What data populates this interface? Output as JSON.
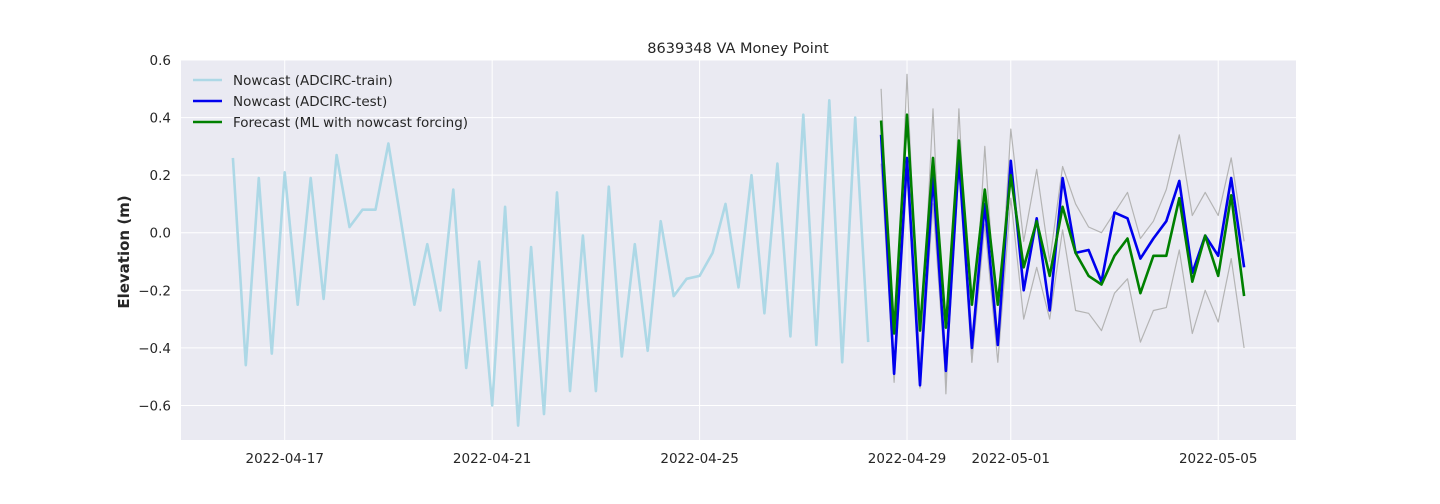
{
  "chart_data": {
    "type": "line",
    "title": "8639348 VA Money Point",
    "xlabel": "",
    "ylabel": "Elevation (m)",
    "x_ticks": [
      "2022-04-17",
      "2022-04-21",
      "2022-04-25",
      "2022-04-29",
      "2022-05-01",
      "2022-05-05"
    ],
    "y_ticks": [
      "−0.6",
      "−0.4",
      "−0.2",
      "0.0",
      "0.2",
      "0.4",
      "0.6"
    ],
    "ylim": [
      -0.72,
      0.6
    ],
    "xlim": [
      "2022-04-15T00:00",
      "2022-05-06T12:00"
    ],
    "grid": true,
    "legend_position": "upper left",
    "series": [
      {
        "name": "Nowcast (ADCIRC-train)",
        "color": "#add8e6",
        "x": [
          "2022-04-16T00:00",
          "2022-04-16T06:00",
          "2022-04-16T12:00",
          "2022-04-16T18:00",
          "2022-04-17T00:00",
          "2022-04-17T06:00",
          "2022-04-17T12:00",
          "2022-04-17T18:00",
          "2022-04-18T00:00",
          "2022-04-18T06:00",
          "2022-04-18T12:00",
          "2022-04-18T18:00",
          "2022-04-19T00:00",
          "2022-04-19T06:00",
          "2022-04-19T12:00",
          "2022-04-19T18:00",
          "2022-04-20T00:00",
          "2022-04-20T06:00",
          "2022-04-20T12:00",
          "2022-04-20T18:00",
          "2022-04-21T00:00",
          "2022-04-21T06:00",
          "2022-04-21T12:00",
          "2022-04-21T18:00",
          "2022-04-22T00:00",
          "2022-04-22T06:00",
          "2022-04-22T12:00",
          "2022-04-22T18:00",
          "2022-04-23T00:00",
          "2022-04-23T06:00",
          "2022-04-23T12:00",
          "2022-04-23T18:00",
          "2022-04-24T00:00",
          "2022-04-24T06:00",
          "2022-04-24T12:00",
          "2022-04-24T18:00",
          "2022-04-25T00:00",
          "2022-04-25T06:00",
          "2022-04-25T12:00",
          "2022-04-25T18:00",
          "2022-04-26T00:00",
          "2022-04-26T06:00",
          "2022-04-26T12:00",
          "2022-04-26T18:00",
          "2022-04-27T00:00",
          "2022-04-27T06:00",
          "2022-04-27T12:00",
          "2022-04-27T18:00",
          "2022-04-28T00:00",
          "2022-04-28T06:00"
        ],
        "values": [
          0.26,
          -0.46,
          0.19,
          -0.42,
          0.21,
          -0.25,
          0.19,
          -0.23,
          0.27,
          0.02,
          0.08,
          0.08,
          0.31,
          0.03,
          -0.25,
          -0.04,
          -0.27,
          0.15,
          -0.47,
          -0.1,
          -0.6,
          0.09,
          -0.67,
          -0.05,
          -0.63,
          0.14,
          -0.55,
          -0.01,
          -0.55,
          0.16,
          -0.43,
          -0.04,
          -0.41,
          0.04,
          -0.22,
          -0.16,
          -0.15,
          -0.07,
          0.1,
          -0.19,
          0.2,
          -0.28,
          0.24,
          -0.36,
          0.41,
          -0.39,
          0.46,
          -0.45,
          0.4,
          -0.38
        ]
      },
      {
        "name": "Nowcast (ADCIRC-test)",
        "color": "#0000ee",
        "x": [
          "2022-04-28T12:00",
          "2022-04-28T18:00",
          "2022-04-29T00:00",
          "2022-04-29T06:00",
          "2022-04-29T12:00",
          "2022-04-29T18:00",
          "2022-04-30T00:00",
          "2022-04-30T06:00",
          "2022-04-30T12:00",
          "2022-04-30T18:00",
          "2022-05-01T00:00",
          "2022-05-01T06:00",
          "2022-05-01T12:00",
          "2022-05-01T18:00",
          "2022-05-02T00:00",
          "2022-05-02T06:00",
          "2022-05-02T12:00",
          "2022-05-02T18:00",
          "2022-05-03T00:00",
          "2022-05-03T06:00",
          "2022-05-03T12:00",
          "2022-05-03T18:00",
          "2022-05-04T00:00",
          "2022-05-04T06:00",
          "2022-05-04T12:00",
          "2022-05-04T18:00",
          "2022-05-05T00:00",
          "2022-05-05T06:00",
          "2022-05-05T12:00"
        ],
        "values": [
          0.34,
          -0.49,
          0.26,
          -0.53,
          0.2,
          -0.48,
          0.26,
          -0.4,
          0.1,
          -0.39,
          0.25,
          -0.2,
          0.05,
          -0.27,
          0.19,
          -0.07,
          -0.06,
          -0.17,
          0.07,
          0.05,
          -0.09,
          -0.02,
          0.04,
          0.18,
          -0.14,
          -0.01,
          -0.08,
          0.19,
          -0.12
        ]
      },
      {
        "name": "Forecast (ML with nowcast forcing)",
        "color": "#008000",
        "x": [
          "2022-04-28T12:00",
          "2022-04-28T18:00",
          "2022-04-29T00:00",
          "2022-04-29T06:00",
          "2022-04-29T12:00",
          "2022-04-29T18:00",
          "2022-04-30T00:00",
          "2022-04-30T06:00",
          "2022-04-30T12:00",
          "2022-04-30T18:00",
          "2022-05-01T00:00",
          "2022-05-01T06:00",
          "2022-05-01T12:00",
          "2022-05-01T18:00",
          "2022-05-02T00:00",
          "2022-05-02T06:00",
          "2022-05-02T12:00",
          "2022-05-02T18:00",
          "2022-05-03T00:00",
          "2022-05-03T06:00",
          "2022-05-03T12:00",
          "2022-05-03T18:00",
          "2022-05-04T00:00",
          "2022-05-04T06:00",
          "2022-05-04T12:00",
          "2022-05-04T18:00",
          "2022-05-05T00:00",
          "2022-05-05T06:00",
          "2022-05-05T12:00"
        ],
        "values": [
          0.39,
          -0.35,
          0.41,
          -0.34,
          0.26,
          -0.33,
          0.32,
          -0.25,
          0.15,
          -0.25,
          0.2,
          -0.12,
          0.04,
          -0.15,
          0.09,
          -0.07,
          -0.15,
          -0.18,
          -0.08,
          -0.02,
          -0.21,
          -0.08,
          -0.08,
          0.12,
          -0.17,
          -0.01,
          -0.15,
          0.13,
          -0.22
        ]
      },
      {
        "color": "#b4b4b4",
        "x": [
          "2022-04-28T12:00",
          "2022-04-28T18:00",
          "2022-04-29T00:00",
          "2022-04-29T06:00",
          "2022-04-29T12:00",
          "2022-04-29T18:00",
          "2022-04-30T00:00",
          "2022-04-30T06:00",
          "2022-04-30T12:00",
          "2022-04-30T18:00",
          "2022-05-01T00:00",
          "2022-05-01T06:00",
          "2022-05-01T12:00",
          "2022-05-01T18:00",
          "2022-05-02T00:00",
          "2022-05-02T06:00",
          "2022-05-02T12:00",
          "2022-05-02T18:00",
          "2022-05-03T00:00",
          "2022-05-03T06:00",
          "2022-05-03T12:00",
          "2022-05-03T18:00",
          "2022-05-04T00:00",
          "2022-05-04T06:00",
          "2022-05-04T12:00",
          "2022-05-04T18:00",
          "2022-05-05T00:00",
          "2022-05-05T06:00",
          "2022-05-05T12:00"
        ],
        "values": [
          0.5,
          -0.51,
          0.55,
          -0.48,
          0.43,
          -0.56,
          0.43,
          -0.45,
          0.3,
          -0.38,
          0.36,
          -0.03,
          0.22,
          -0.1,
          0.23,
          0.1,
          0.02,
          0.0,
          0.07,
          0.14,
          -0.02,
          0.04,
          0.15,
          0.34,
          0.06,
          0.14,
          0.06,
          0.26,
          -0.03
        ]
      },
      {
        "color": "#b4b4b4",
        "x": [
          "2022-04-28T12:00",
          "2022-04-28T18:00",
          "2022-04-29T00:00",
          "2022-04-29T06:00",
          "2022-04-29T12:00",
          "2022-04-29T18:00",
          "2022-04-30T00:00",
          "2022-04-30T06:00",
          "2022-04-30T12:00",
          "2022-04-30T18:00",
          "2022-05-01T00:00",
          "2022-05-01T06:00",
          "2022-05-01T12:00",
          "2022-05-01T18:00",
          "2022-05-02T00:00",
          "2022-05-02T06:00",
          "2022-05-02T12:00",
          "2022-05-02T18:00",
          "2022-05-03T00:00",
          "2022-05-03T06:00",
          "2022-05-03T12:00",
          "2022-05-03T18:00",
          "2022-05-04T00:00",
          "2022-05-04T06:00",
          "2022-05-04T12:00",
          "2022-05-04T18:00",
          "2022-05-05T00:00",
          "2022-05-05T06:00",
          "2022-05-05T12:00"
        ],
        "values": [
          0.24,
          -0.52,
          0.2,
          -0.54,
          0.1,
          -0.52,
          0.22,
          -0.45,
          0.03,
          -0.45,
          0.12,
          -0.3,
          -0.12,
          -0.3,
          0.01,
          -0.27,
          -0.28,
          -0.34,
          -0.21,
          -0.16,
          -0.38,
          -0.27,
          -0.26,
          -0.06,
          -0.35,
          -0.2,
          -0.31,
          -0.09,
          -0.4
        ]
      }
    ]
  }
}
